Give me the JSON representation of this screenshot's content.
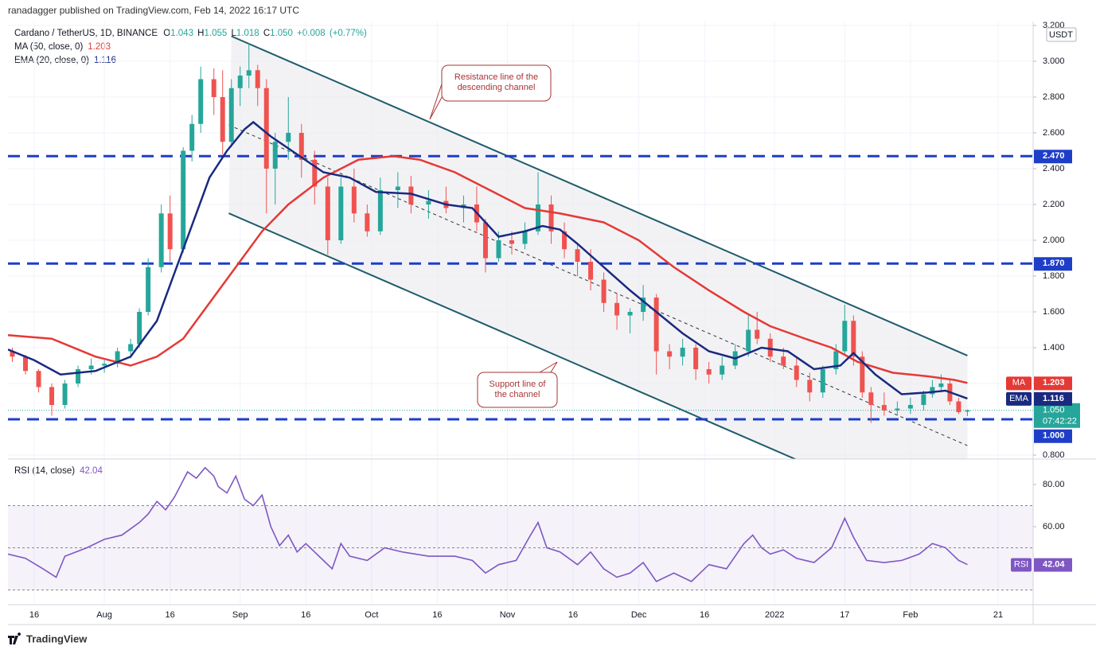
{
  "header": {
    "publisher": "ranadagger published on TradingView.com, Feb 14, 2022 16:17 UTC",
    "logo": "TradingView"
  },
  "chart_data": [
    {
      "type": "candlestick",
      "title": "Cardano / TetherUS, 1D, BINANCE",
      "ohlc_legend": [
        {
          "key": "O",
          "value": 1.043,
          "label": "1.043"
        },
        {
          "key": "H",
          "value": 1.055,
          "label": "1.055"
        },
        {
          "key": "L",
          "value": 1.018,
          "label": "1.018"
        },
        {
          "key": "C",
          "value": 1.05,
          "label": "1.050"
        }
      ],
      "change": {
        "value": 0.008,
        "label": "+0.008"
      },
      "change_pct": {
        "value": 0.77,
        "label": "(+0.77%)"
      },
      "currency": "USDT",
      "up_color": "#26a69a",
      "down_color": "#ef5350",
      "last_price": {
        "value": 1.05,
        "label": "1.050"
      },
      "countdown": "07:42:22",
      "x": [
        -5,
        -2,
        1,
        4,
        7,
        10,
        13,
        16,
        19,
        22,
        24,
        26,
        29,
        31,
        34,
        36,
        38,
        41,
        43,
        45,
        47,
        49,
        51,
        53,
        55,
        58,
        61,
        64,
        67,
        70,
        73,
        76,
        79,
        83,
        86,
        90,
        94,
        98,
        101,
        103,
        106,
        109,
        112,
        115,
        118,
        121,
        124,
        127,
        130,
        133,
        136,
        139,
        142,
        145,
        148,
        151,
        154,
        157,
        160,
        163,
        165,
        168,
        171,
        174,
        177,
        180,
        183,
        185,
        187,
        189,
        191,
        194,
        197,
        200,
        203,
        205,
        207,
        209,
        211,
        213
      ],
      "open": [
        1.38,
        1.35,
        1.27,
        1.18,
        1.08,
        1.2,
        1.28,
        1.3,
        1.31,
        1.38,
        1.42,
        1.6,
        1.85,
        2.15,
        1.95,
        2.5,
        2.65,
        2.9,
        2.8,
        2.55,
        2.85,
        2.92,
        2.95,
        2.85,
        2.4,
        2.55,
        2.6,
        2.45,
        2.3,
        2.0,
        2.3,
        2.15,
        2.05,
        2.28,
        2.3,
        2.2,
        2.22,
        2.18,
        2.2,
        2.1,
        1.9,
        2.0,
        1.98,
        2.05,
        2.2,
        2.05,
        1.95,
        1.88,
        1.78,
        1.65,
        1.58,
        1.6,
        1.68,
        1.38,
        1.35,
        1.4,
        1.28,
        1.25,
        1.3,
        1.38,
        1.5,
        1.45,
        1.35,
        1.3,
        1.22,
        1.15,
        1.28,
        1.38,
        1.55,
        1.35,
        1.15,
        1.08,
        1.05,
        1.06,
        1.08,
        1.14,
        1.18,
        1.2,
        1.1,
        1.043
      ],
      "high": [
        1.4,
        1.36,
        1.28,
        1.2,
        1.22,
        1.3,
        1.34,
        1.33,
        1.4,
        1.45,
        1.62,
        1.9,
        2.2,
        2.25,
        2.52,
        2.7,
        2.97,
        2.96,
        2.95,
        2.9,
        2.97,
        3.1,
        2.98,
        2.9,
        2.6,
        2.8,
        2.65,
        2.5,
        2.35,
        2.35,
        2.4,
        2.2,
        2.35,
        2.38,
        2.36,
        2.28,
        2.3,
        2.25,
        2.3,
        2.12,
        2.05,
        2.05,
        2.1,
        2.38,
        2.25,
        2.1,
        1.98,
        1.95,
        1.82,
        1.7,
        1.62,
        1.75,
        1.7,
        1.42,
        1.45,
        1.42,
        1.32,
        1.35,
        1.42,
        1.58,
        1.6,
        1.48,
        1.4,
        1.34,
        1.26,
        1.3,
        1.42,
        1.64,
        1.58,
        1.38,
        1.18,
        1.15,
        1.1,
        1.12,
        1.16,
        1.22,
        1.25,
        1.22,
        1.12,
        1.055
      ],
      "low": [
        1.32,
        1.25,
        1.15,
        1.02,
        1.06,
        1.18,
        1.25,
        1.26,
        1.29,
        1.34,
        1.4,
        1.58,
        1.82,
        1.88,
        1.93,
        2.44,
        2.6,
        2.7,
        2.48,
        2.52,
        2.75,
        2.85,
        2.75,
        2.15,
        2.2,
        2.45,
        2.35,
        2.2,
        1.92,
        1.98,
        2.1,
        2.02,
        2.03,
        2.18,
        2.15,
        2.12,
        2.15,
        2.1,
        2.05,
        1.82,
        1.88,
        1.92,
        1.95,
        2.03,
        1.98,
        1.9,
        1.8,
        1.72,
        1.6,
        1.5,
        1.48,
        1.55,
        1.25,
        1.28,
        1.3,
        1.22,
        1.2,
        1.22,
        1.28,
        1.35,
        1.42,
        1.32,
        1.28,
        1.18,
        1.1,
        1.12,
        1.25,
        1.36,
        1.3,
        1.12,
        0.98,
        1.02,
        1.02,
        1.03,
        1.05,
        1.12,
        1.15,
        1.08,
        1.03,
        1.018
      ],
      "close": [
        1.35,
        1.27,
        1.18,
        1.08,
        1.2,
        1.28,
        1.3,
        1.31,
        1.38,
        1.42,
        1.6,
        1.85,
        2.15,
        1.95,
        2.5,
        2.65,
        2.9,
        2.8,
        2.55,
        2.85,
        2.92,
        2.95,
        2.85,
        2.4,
        2.55,
        2.6,
        2.45,
        2.3,
        2.0,
        2.3,
        2.15,
        2.05,
        2.28,
        2.3,
        2.2,
        2.22,
        2.18,
        2.2,
        2.1,
        1.9,
        2.0,
        1.98,
        2.05,
        2.2,
        2.05,
        1.95,
        1.88,
        1.78,
        1.65,
        1.58,
        1.6,
        1.68,
        1.38,
        1.35,
        1.4,
        1.28,
        1.25,
        1.3,
        1.38,
        1.5,
        1.45,
        1.35,
        1.3,
        1.22,
        1.15,
        1.28,
        1.38,
        1.55,
        1.35,
        1.15,
        1.08,
        1.05,
        1.06,
        1.08,
        1.14,
        1.18,
        1.2,
        1.1,
        1.04,
        1.05
      ],
      "overlays": [
        {
          "name": "MA (50, close, 0)",
          "tag": "MA",
          "color": "#e53935",
          "last": {
            "value": 1.203,
            "label": "1.203"
          },
          "x": [
            -6,
            4,
            14,
            22,
            28,
            34,
            40,
            46,
            52,
            58,
            66,
            74,
            82,
            88,
            96,
            104,
            112,
            120,
            130,
            138,
            146,
            154,
            162,
            168,
            176,
            182,
            188,
            196,
            204,
            210,
            213
          ],
          "values": [
            1.47,
            1.45,
            1.35,
            1.3,
            1.35,
            1.45,
            1.65,
            1.85,
            2.05,
            2.2,
            2.35,
            2.45,
            2.47,
            2.45,
            2.38,
            2.28,
            2.18,
            2.15,
            2.1,
            2.0,
            1.85,
            1.72,
            1.6,
            1.52,
            1.45,
            1.4,
            1.32,
            1.26,
            1.24,
            1.22,
            1.203
          ]
        },
        {
          "name": "EMA (20, close, 0)",
          "tag": "EMA",
          "color": "#1a2a80",
          "last": {
            "value": 1.116,
            "label": "1.116"
          },
          "x": [
            -6,
            0,
            6,
            14,
            22,
            28,
            34,
            40,
            44,
            48,
            50,
            54,
            60,
            66,
            72,
            78,
            86,
            94,
            100,
            106,
            112,
            116,
            120,
            124,
            130,
            136,
            142,
            148,
            154,
            160,
            166,
            172,
            178,
            184,
            187,
            192,
            198,
            204,
            208,
            213
          ],
          "values": [
            1.39,
            1.33,
            1.25,
            1.27,
            1.35,
            1.55,
            1.95,
            2.35,
            2.5,
            2.62,
            2.66,
            2.58,
            2.48,
            2.38,
            2.35,
            2.27,
            2.26,
            2.2,
            2.18,
            2.02,
            2.05,
            2.08,
            2.06,
            1.98,
            1.85,
            1.72,
            1.6,
            1.48,
            1.38,
            1.34,
            1.4,
            1.38,
            1.28,
            1.3,
            1.37,
            1.25,
            1.14,
            1.15,
            1.16,
            1.116
          ]
        }
      ],
      "levels": [
        {
          "value": 2.47,
          "label": "2.470"
        },
        {
          "value": 1.87,
          "label": "1.870"
        },
        {
          "value": 1.0,
          "label": "1.000"
        }
      ],
      "level_color": "#1e3ec8",
      "channel": {
        "resistance": {
          "x": [
            45,
            213
          ],
          "values": [
            3.14,
            1.356
          ]
        },
        "support": {
          "x": [
            44.4,
            213
          ],
          "values": [
            2.151,
            0.36
          ]
        },
        "middle": {
          "x": [
            44.4,
            213
          ],
          "values": [
            2.644,
            0.853
          ]
        }
      },
      "annotations": [
        [
          "Resistance line of the",
          "descending channel"
        ],
        [
          "Support line of",
          "the channel"
        ]
      ],
      "xlim": [
        -6,
        228
      ],
      "ylim": [
        0.78,
        3.22
      ],
      "yticks": [
        {
          "value": 0.8,
          "label": "0.800"
        },
        {
          "value": 1.0,
          "label": "1.000"
        },
        {
          "value": 1.2,
          "label": "1.200"
        },
        {
          "value": 1.4,
          "label": "1.400"
        },
        {
          "value": 1.6,
          "label": "1.600"
        },
        {
          "value": 1.8,
          "label": "1.800"
        },
        {
          "value": 2.0,
          "label": "2.000"
        },
        {
          "value": 2.2,
          "label": "2.200"
        },
        {
          "value": 2.4,
          "label": "2.400"
        },
        {
          "value": 2.6,
          "label": "2.600"
        },
        {
          "value": 2.8,
          "label": "2.800"
        },
        {
          "value": 3.0,
          "label": "3.000"
        },
        {
          "value": 3.2,
          "label": "3.200"
        }
      ],
      "xticks": [
        {
          "value": 0,
          "label": "16"
        },
        {
          "value": 16,
          "label": "Aug"
        },
        {
          "value": 31,
          "label": "16"
        },
        {
          "value": 47,
          "label": "Sep"
        },
        {
          "value": 62,
          "label": "16"
        },
        {
          "value": 77,
          "label": "Oct"
        },
        {
          "value": 92,
          "label": "16"
        },
        {
          "value": 108,
          "label": "Nov"
        },
        {
          "value": 123,
          "label": "16"
        },
        {
          "value": 138,
          "label": "Dec"
        },
        {
          "value": 153,
          "label": "16"
        },
        {
          "value": 169,
          "label": "2022"
        },
        {
          "value": 185,
          "label": "17"
        },
        {
          "value": 200,
          "label": "Feb"
        },
        {
          "value": 220,
          "label": "21"
        }
      ]
    },
    {
      "type": "line",
      "title": "RSI (14, close)",
      "tag": "RSI",
      "color": "#7e57c2",
      "last": {
        "value": 42.04,
        "label": "42.04"
      },
      "x": [
        -6,
        -2,
        2,
        5,
        7,
        12,
        16,
        20,
        24,
        26,
        28,
        30,
        32,
        35,
        37,
        39,
        41,
        42,
        44,
        46,
        48,
        50,
        52,
        54,
        56,
        58,
        60,
        62,
        64,
        66,
        68,
        70,
        72,
        76,
        80,
        84,
        90,
        96,
        100,
        103,
        106,
        110,
        113,
        115,
        117,
        120,
        124,
        127,
        130,
        133,
        136,
        139,
        142,
        146,
        150,
        154,
        158,
        162,
        164,
        166,
        168,
        171,
        174,
        178,
        182,
        185,
        187,
        190,
        194,
        198,
        202,
        205,
        208,
        211,
        213
      ],
      "values": [
        47,
        45,
        40,
        36,
        46,
        50,
        54,
        56,
        62,
        66,
        72,
        68,
        74,
        86,
        83,
        88,
        84,
        79,
        76,
        84,
        73,
        70,
        75,
        60,
        51,
        56,
        48,
        52,
        48,
        44,
        40,
        52,
        46,
        44,
        50,
        48,
        46,
        46,
        44,
        38,
        42,
        44,
        55,
        62,
        50,
        48,
        42,
        48,
        40,
        36,
        38,
        43,
        34,
        38,
        34,
        42,
        40,
        52,
        56,
        50,
        47,
        49,
        45,
        43,
        50,
        64,
        55,
        44,
        43,
        44,
        47,
        52,
        50,
        44,
        42.04
      ],
      "band": [
        30,
        70
      ],
      "midline": 50,
      "xlim": [
        -6,
        228
      ],
      "ylim": [
        23,
        91.7
      ],
      "yticks": [
        {
          "value": 60,
          "label": "60.00"
        },
        {
          "value": 80,
          "label": "80.00"
        }
      ]
    }
  ]
}
